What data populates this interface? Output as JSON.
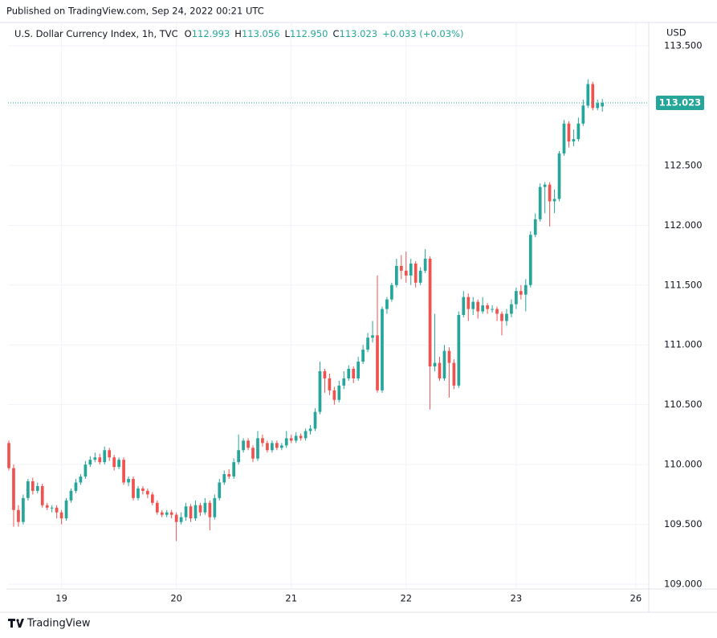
{
  "published": "Published on TradingView.com, Sep 24, 2022 00:21 UTC",
  "brand": "TradingView",
  "chart_data": {
    "type": "candlestick",
    "title": "U.S. Dollar Currency Index, 1h, TVC",
    "currency": "USD",
    "ohlc_labels": [
      "O",
      "H",
      "L",
      "C"
    ],
    "ohlc_value_labels": [
      "112.993",
      "113.056",
      "112.950",
      "113.023"
    ],
    "change_label": "+0.033 (+0.03%)",
    "up_color": "#26a69a",
    "down_color": "#ef5350",
    "grid": true,
    "xlim": [
      -0.17,
      133.7
    ],
    "xticks": [
      {
        "value": 11,
        "label": "19"
      },
      {
        "value": 35,
        "label": "20"
      },
      {
        "value": 59,
        "label": "21"
      },
      {
        "value": 83,
        "label": "22"
      },
      {
        "value": 106,
        "label": "23"
      },
      {
        "value": 131,
        "label": "26"
      }
    ],
    "ylim": [
      108.96,
      113.661
    ],
    "yticks": [
      {
        "value": 109,
        "label": "109.000"
      },
      {
        "value": 109.5,
        "label": "109.500"
      },
      {
        "value": 110,
        "label": "110.000"
      },
      {
        "value": 110.5,
        "label": "110.500"
      },
      {
        "value": 111,
        "label": "111.000"
      },
      {
        "value": 111.5,
        "label": "111.500"
      },
      {
        "value": 112,
        "label": "112.000"
      },
      {
        "value": 112.5,
        "label": "112.500"
      },
      {
        "value": 113,
        "label": "113.000"
      },
      {
        "value": 113.5,
        "label": "113.500"
      }
    ],
    "open": [
      110.18,
      109.97,
      109.62,
      109.52,
      109.72,
      109.86,
      109.78,
      109.82,
      109.66,
      109.64,
      109.64,
      109.6,
      109.55,
      109.7,
      109.78,
      109.85,
      109.9,
      110.0,
      110.04,
      110.06,
      110.02,
      110.12,
      110.06,
      109.98,
      110.04,
      109.85,
      109.88,
      109.72,
      109.8,
      109.78,
      109.75,
      109.68,
      109.6,
      109.58,
      109.6,
      109.58,
      109.52,
      109.56,
      109.65,
      109.55,
      109.66,
      109.6,
      109.68,
      109.56,
      109.72,
      109.85,
      109.92,
      109.9,
      110.02,
      110.12,
      110.2,
      110.14,
      110.05,
      110.22,
      110.18,
      110.12,
      110.18,
      110.14,
      110.16,
      110.22,
      110.2,
      110.24,
      110.22,
      110.28,
      110.3,
      110.44,
      110.78,
      110.72,
      110.62,
      110.54,
      110.66,
      110.72,
      110.8,
      110.72,
      110.86,
      110.96,
      111.06,
      111.08,
      110.62,
      111.3,
      111.38,
      111.5,
      111.66,
      111.62,
      111.58,
      111.68,
      111.52,
      111.62,
      111.72,
      110.82,
      110.85,
      110.72,
      110.95,
      110.85,
      110.66,
      111.25,
      111.4,
      111.3,
      111.36,
      111.28,
      111.33,
      111.3,
      111.3,
      111.26,
      111.2,
      111.26,
      111.34,
      111.45,
      111.42,
      111.5,
      111.92,
      112.05,
      112.32,
      112.34,
      112.2,
      112.22,
      112.6,
      112.85,
      112.7,
      112.72,
      112.85,
      113.0,
      113.18,
      112.98,
      112.993
    ],
    "high": [
      110.2,
      110.0,
      109.66,
      109.75,
      109.88,
      109.89,
      109.85,
      109.84,
      109.68,
      109.66,
      109.66,
      109.62,
      109.72,
      109.8,
      109.88,
      109.92,
      110.03,
      110.07,
      110.1,
      110.09,
      110.15,
      110.14,
      110.08,
      110.06,
      110.06,
      109.9,
      109.9,
      109.82,
      109.82,
      109.8,
      109.77,
      109.7,
      109.62,
      109.62,
      109.62,
      109.6,
      109.6,
      109.68,
      109.67,
      109.7,
      109.68,
      109.72,
      109.7,
      109.75,
      109.88,
      109.95,
      109.96,
      110.05,
      110.25,
      110.22,
      110.22,
      110.16,
      110.28,
      110.25,
      110.2,
      110.2,
      110.2,
      110.18,
      110.28,
      110.25,
      110.27,
      110.26,
      110.3,
      110.33,
      110.47,
      110.86,
      110.8,
      110.76,
      110.65,
      110.7,
      110.78,
      110.83,
      110.82,
      110.9,
      111.0,
      111.1,
      111.2,
      111.58,
      111.32,
      111.4,
      111.52,
      111.72,
      111.75,
      111.78,
      111.72,
      111.7,
      111.65,
      111.8,
      111.74,
      111.26,
      110.9,
      111.0,
      110.98,
      110.88,
      111.28,
      111.45,
      111.43,
      111.4,
      111.38,
      111.4,
      111.35,
      111.33,
      111.32,
      111.28,
      111.3,
      111.38,
      111.48,
      111.5,
      111.55,
      111.95,
      112.1,
      112.35,
      112.36,
      112.36,
      112.3,
      112.62,
      112.88,
      112.87,
      112.8,
      112.9,
      113.05,
      113.22,
      113.2,
      113.05,
      113.056
    ],
    "low": [
      109.95,
      109.48,
      109.48,
      109.5,
      109.7,
      109.75,
      109.76,
      109.64,
      109.62,
      109.6,
      109.55,
      109.5,
      109.53,
      109.68,
      109.76,
      109.83,
      109.88,
      109.98,
      110.02,
      110.0,
      110.0,
      110.03,
      109.95,
      109.96,
      109.83,
      109.82,
      109.7,
      109.7,
      109.75,
      109.72,
      109.66,
      109.58,
      109.56,
      109.56,
      109.55,
      109.36,
      109.5,
      109.53,
      109.52,
      109.53,
      109.57,
      109.58,
      109.45,
      109.54,
      109.7,
      109.83,
      109.88,
      109.88,
      110.0,
      110.1,
      110.12,
      110.02,
      110.03,
      110.15,
      110.1,
      110.1,
      110.12,
      110.12,
      110.14,
      110.18,
      110.18,
      110.2,
      110.2,
      110.25,
      110.28,
      110.42,
      110.6,
      110.58,
      110.5,
      110.52,
      110.63,
      110.7,
      110.68,
      110.7,
      110.84,
      110.94,
      111.02,
      110.6,
      110.6,
      111.26,
      111.36,
      111.48,
      111.55,
      111.52,
      111.5,
      111.48,
      111.5,
      111.6,
      110.46,
      110.78,
      110.7,
      110.7,
      110.56,
      110.63,
      110.64,
      111.23,
      111.2,
      111.25,
      111.22,
      111.26,
      111.26,
      111.27,
      111.2,
      111.08,
      111.16,
      111.23,
      111.3,
      111.38,
      111.28,
      111.48,
      111.9,
      112.03,
      112.1,
      111.99,
      112.1,
      112.2,
      112.58,
      112.65,
      112.66,
      112.7,
      112.83,
      112.98,
      112.96,
      112.96,
      112.95
    ],
    "close": [
      109.97,
      109.62,
      109.52,
      109.72,
      109.86,
      109.78,
      109.82,
      109.66,
      109.64,
      109.64,
      109.6,
      109.55,
      109.7,
      109.78,
      109.85,
      109.9,
      110.0,
      110.04,
      110.06,
      110.02,
      110.12,
      110.06,
      109.98,
      110.04,
      109.85,
      109.88,
      109.72,
      109.8,
      109.78,
      109.75,
      109.68,
      109.6,
      109.58,
      109.6,
      109.58,
      109.52,
      109.56,
      109.65,
      109.55,
      109.66,
      109.6,
      109.68,
      109.56,
      109.72,
      109.85,
      109.92,
      109.9,
      110.02,
      110.12,
      110.2,
      110.14,
      110.05,
      110.22,
      110.18,
      110.12,
      110.18,
      110.14,
      110.16,
      110.22,
      110.2,
      110.24,
      110.22,
      110.28,
      110.3,
      110.44,
      110.78,
      110.72,
      110.62,
      110.54,
      110.66,
      110.72,
      110.8,
      110.72,
      110.86,
      110.96,
      111.06,
      111.08,
      110.62,
      111.3,
      111.38,
      111.5,
      111.66,
      111.62,
      111.58,
      111.68,
      111.52,
      111.62,
      111.72,
      110.82,
      110.85,
      110.72,
      110.95,
      110.85,
      110.66,
      111.25,
      111.4,
      111.3,
      111.36,
      111.28,
      111.33,
      111.3,
      111.3,
      111.26,
      111.2,
      111.26,
      111.34,
      111.45,
      111.42,
      111.5,
      111.92,
      112.05,
      112.32,
      112.34,
      112.2,
      112.22,
      112.6,
      112.85,
      112.7,
      112.72,
      112.85,
      113.0,
      113.18,
      112.98,
      113.02,
      113.023
    ]
  }
}
